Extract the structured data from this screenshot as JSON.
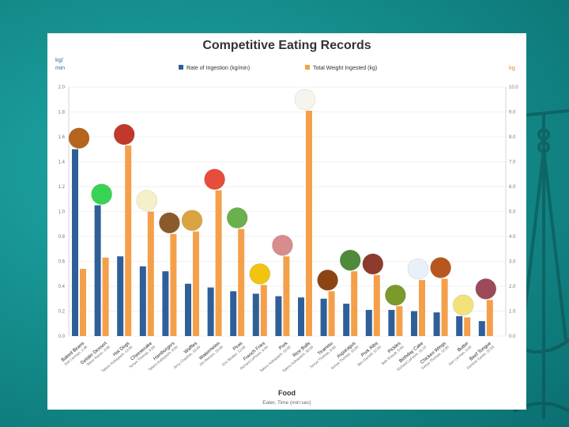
{
  "chart_data": {
    "type": "bar",
    "title": "Competitive Eating Records",
    "xlabel": "Food",
    "xlabel_sub": "Eater, Time (min:sec)",
    "y_left_label": "kg/\nmin",
    "y_right_label": "kg",
    "y_left_ticks": [
      "0.0",
      "0.2",
      "0.4",
      "0.6",
      "0.8",
      "1.0",
      "1.2",
      "1.4",
      "1.6",
      "1.8",
      "2.0"
    ],
    "y_right_ticks": [
      "0.0",
      "1.0",
      "2.0",
      "3.0",
      "4.0",
      "5.0",
      "6.0",
      "7.0",
      "8.0",
      "9.0",
      "10.0"
    ],
    "ylim_left": [
      0,
      2.0
    ],
    "ylim_right": [
      0,
      10.0
    ],
    "categories": [
      "Baked Beans",
      "Gelatin Dessert",
      "Hot Dogs",
      "Cheesecake",
      "Hamburgers",
      "Waffles",
      "Watermelon",
      "Peas",
      "French Fries",
      "Pork",
      "Rice Balls",
      "Tiramisu",
      "Asparagus",
      "Pork Ribs",
      "Pickles",
      "Birthday Cake",
      "Chicken Wings",
      "Butter",
      "Beef Tongue"
    ],
    "category_subs": [
      "Don Lerman, 1:48",
      "Steve Keiner, 3:00",
      "Takeru Kobayashi, 12:00",
      "Sonya Thomas, 9:00",
      "Takeru Kobayashi, 8:00",
      "Jerry Chastine, 10:00",
      "Jim Reeves, 15:00",
      "Eric Booker, 12:00",
      "Richard LeFevre, 6:00",
      "Takeru Kobayashi, 10:00",
      "Takeru Kobayashi, 30:00",
      "Sonya Thomas, 6:00",
      "Sonya Thomas, 10:00",
      "Ben Darnell, 12:00",
      "Bob Shoudt, 6:00",
      "Richard LeFevre, 11:23",
      "Sonya Thomas, 12:00",
      "Don Lerman, 5:00",
      "Dominic Cardo, 12:00"
    ],
    "series": [
      {
        "name": "Rate of Ingestion (kg/min)",
        "color": "#2e5f99",
        "axis": "left",
        "values": [
          1.5,
          1.05,
          0.64,
          0.56,
          0.52,
          0.42,
          0.39,
          0.36,
          0.34,
          0.32,
          0.31,
          0.3,
          0.26,
          0.21,
          0.21,
          0.2,
          0.19,
          0.16,
          0.12
        ]
      },
      {
        "name": "Total Weight Ingested (kg)",
        "color": "#f4a04a",
        "axis": "right",
        "values": [
          2.7,
          3.15,
          7.65,
          5.0,
          4.1,
          4.2,
          5.85,
          4.3,
          2.05,
          3.2,
          9.05,
          1.8,
          2.6,
          2.45,
          1.2,
          2.25,
          2.3,
          0.75,
          1.45
        ]
      }
    ]
  },
  "food_icons": [
    "beans-icon",
    "gelatin-icon",
    "hot-dog-icon",
    "cheesecake-icon",
    "hamburger-icon",
    "waffle-icon",
    "watermelon-icon",
    "peas-icon",
    "french-fries-icon",
    "pork-icon",
    "rice-balls-icon",
    "tiramisu-icon",
    "asparagus-icon",
    "pork-ribs-icon",
    "pickle-icon",
    "birthday-cake-icon",
    "chicken-wing-icon",
    "butter-icon",
    "beef-tongue-icon"
  ],
  "colors": {
    "rate": "#2e5f99",
    "weight": "#f4a04a",
    "background": "#138a89"
  }
}
